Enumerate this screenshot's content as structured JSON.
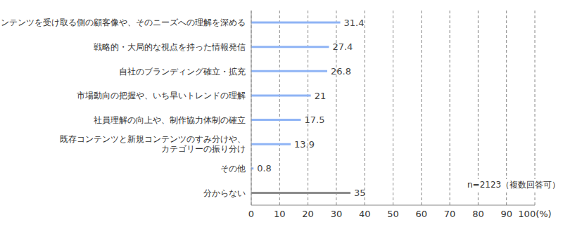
{
  "chart_data": {
    "type": "bar",
    "orientation": "horizontal",
    "categories": [
      "コンテンツを受け取る側の顧客像や、そのニーズへの理解を深める",
      "戦略的・大局的な視点を持った情報発信",
      "自社のブランディング確立・拡充",
      "市場動向の把握や、いち早いトレンドの理解",
      "社員理解の向上や、制作協力体制の確立",
      "既存コンテンツと新規コンテンツのすみ分けや、\nカテゴリーの振り分け",
      "その他",
      "分からない"
    ],
    "values": [
      31.4,
      27.4,
      26.8,
      21,
      17.5,
      13.9,
      0.8,
      35
    ],
    "colors": [
      "#8fb4f5",
      "#8fb4f5",
      "#8fb4f5",
      "#8fb4f5",
      "#8fb4f5",
      "#8fb4f5",
      "#8fb4f5",
      "#8c8c8c"
    ],
    "xlim": [
      0,
      100
    ],
    "xticks": [
      0,
      10,
      20,
      30,
      40,
      50,
      60,
      70,
      80,
      90,
      {
        "value": 100,
        "label": "100(%)"
      }
    ],
    "grid": true,
    "data_labels": true,
    "annotation": "n=2123（複数回答可）"
  }
}
